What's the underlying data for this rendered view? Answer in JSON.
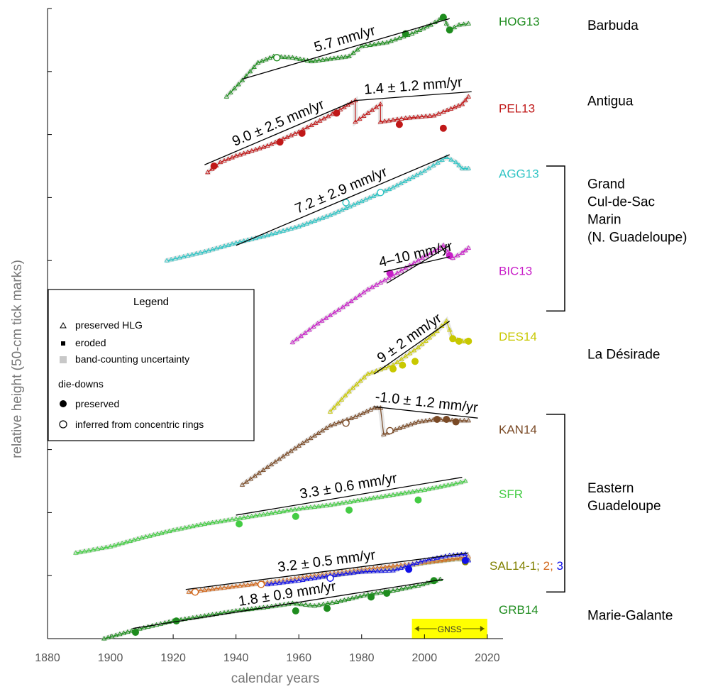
{
  "chart_data": {
    "type": "line",
    "title": "",
    "xlabel": "calendar years",
    "ylabel": "relative height (50-cm tick marks)",
    "xlim": [
      1880,
      2025
    ],
    "xticks": [
      1880,
      1900,
      1920,
      1940,
      1960,
      1980,
      2000,
      2020
    ],
    "ylim": [
      0,
      5
    ],
    "ytick_step_m": 0.5,
    "y_units": "m",
    "grid": false,
    "legend": {
      "title": "Legend",
      "placement": "left-middle",
      "items": [
        {
          "symbol": "triangle",
          "label": "preserved HLG"
        },
        {
          "symbol": "square",
          "label": "eroded"
        },
        {
          "symbol": "gray-band",
          "label": "band-counting uncertainty"
        }
      ],
      "subheading": "die-downs",
      "subitems": [
        {
          "symbol": "filled-circle",
          "label": "preserved"
        },
        {
          "symbol": "open-circle",
          "label": "inferred from concentric rings"
        }
      ]
    },
    "gnss": {
      "label": "GNSS",
      "x": [
        1996,
        2020
      ],
      "color": "#ffff00"
    },
    "series": [
      {
        "name": "HOG13",
        "color": "#1e8c1e",
        "points": [
          [
            1937,
            4.3
          ],
          [
            1942,
            4.43
          ],
          [
            1947,
            4.57
          ],
          [
            1952,
            4.62
          ],
          [
            1958,
            4.61
          ],
          [
            1964,
            4.58
          ],
          [
            1970,
            4.6
          ],
          [
            1976,
            4.62
          ],
          [
            1980,
            4.7
          ],
          [
            1988,
            4.73
          ],
          [
            1996,
            4.8
          ],
          [
            2002,
            4.87
          ],
          [
            2006,
            4.93
          ],
          [
            2008,
            4.83
          ],
          [
            2011,
            4.87
          ],
          [
            2014,
            4.88
          ]
        ],
        "dies_filled": [
          [
            1994,
            4.8
          ],
          [
            2006,
            4.93
          ],
          [
            2008,
            4.83
          ]
        ],
        "dies_open": [
          [
            1953,
            4.61
          ]
        ]
      },
      {
        "name": "PEL13",
        "color": "#c01818",
        "points": [
          [
            1931,
            3.7
          ],
          [
            1935,
            3.78
          ],
          [
            1940,
            3.83
          ],
          [
            1950,
            3.91
          ],
          [
            1960,
            4.02
          ],
          [
            1972,
            4.18
          ],
          [
            1978,
            4.27
          ],
          [
            1978,
            4.1
          ],
          [
            1986,
            4.24
          ],
          [
            1986,
            4.1
          ],
          [
            1994,
            4.13
          ],
          [
            2003,
            4.15
          ],
          [
            2006,
            4.18
          ],
          [
            2012,
            4.24
          ],
          [
            2014,
            4.3
          ]
        ],
        "dies_filled": [
          [
            1933,
            3.75
          ],
          [
            1954,
            3.94
          ],
          [
            1961,
            4.01
          ],
          [
            1972,
            4.17
          ],
          [
            1992,
            4.08
          ],
          [
            2006,
            4.05
          ]
        ],
        "dies_open": []
      },
      {
        "name": "AGG13",
        "color": "#2ec4c4",
        "points": [
          [
            1918,
            3.0
          ],
          [
            1930,
            3.07
          ],
          [
            1940,
            3.14
          ],
          [
            1950,
            3.2
          ],
          [
            1960,
            3.27
          ],
          [
            1970,
            3.36
          ],
          [
            1980,
            3.47
          ],
          [
            1990,
            3.58
          ],
          [
            2000,
            3.71
          ],
          [
            2007,
            3.82
          ],
          [
            2010,
            3.78
          ],
          [
            2012,
            3.73
          ],
          [
            2014,
            3.73
          ]
        ],
        "dies_filled": [],
        "dies_open": [
          [
            1975,
            3.46
          ],
          [
            1986,
            3.54
          ]
        ]
      },
      {
        "name": "BIC13",
        "color": "#c81ec8",
        "points": [
          [
            1958,
            2.35
          ],
          [
            1966,
            2.5
          ],
          [
            1974,
            2.63
          ],
          [
            1982,
            2.77
          ],
          [
            1990,
            2.88
          ],
          [
            1998,
            3.0
          ],
          [
            2006,
            3.12
          ],
          [
            2009,
            3.02
          ],
          [
            2012,
            3.06
          ],
          [
            2014,
            3.1
          ]
        ],
        "dies_filled": [
          [
            1989,
            2.9
          ],
          [
            2008,
            3.04
          ]
        ],
        "dies_open": []
      },
      {
        "name": "DES14",
        "color": "#c8c800",
        "points": [
          [
            1970,
            1.8
          ],
          [
            1976,
            1.96
          ],
          [
            1982,
            2.1
          ],
          [
            1990,
            2.17
          ],
          [
            1998,
            2.31
          ],
          [
            2004,
            2.44
          ],
          [
            2007,
            2.52
          ],
          [
            2009,
            2.38
          ],
          [
            2012,
            2.36
          ],
          [
            2014,
            2.36
          ]
        ],
        "dies_filled": [
          [
            1990,
            2.14
          ],
          [
            1993,
            2.17
          ],
          [
            1997,
            2.2
          ],
          [
            2009,
            2.38
          ],
          [
            2011,
            2.36
          ],
          [
            2014,
            2.36
          ]
        ],
        "dies_open": []
      },
      {
        "name": "KAN14",
        "color": "#7a4a26",
        "points": [
          [
            1942,
            1.22
          ],
          [
            1950,
            1.36
          ],
          [
            1960,
            1.53
          ],
          [
            1970,
            1.69
          ],
          [
            1978,
            1.76
          ],
          [
            1984,
            1.83
          ],
          [
            1986,
            1.83
          ],
          [
            1987,
            1.62
          ],
          [
            1992,
            1.67
          ],
          [
            1998,
            1.72
          ],
          [
            2004,
            1.74
          ],
          [
            2010,
            1.73
          ],
          [
            2014,
            1.73
          ]
        ],
        "dies_filled": [
          [
            2004,
            1.74
          ],
          [
            2007,
            1.74
          ],
          [
            2010,
            1.72
          ]
        ],
        "dies_open": [
          [
            1975,
            1.71
          ],
          [
            1989,
            1.65
          ]
        ]
      },
      {
        "name": "SFR",
        "color": "#44cc44",
        "points": [
          [
            1889,
            0.68
          ],
          [
            1900,
            0.73
          ],
          [
            1910,
            0.8
          ],
          [
            1920,
            0.86
          ],
          [
            1930,
            0.91
          ],
          [
            1940,
            0.95
          ],
          [
            1950,
            0.99
          ],
          [
            1960,
            1.03
          ],
          [
            1970,
            1.06
          ],
          [
            1980,
            1.1
          ],
          [
            1990,
            1.14
          ],
          [
            2000,
            1.18
          ],
          [
            2010,
            1.23
          ],
          [
            2013,
            1.25
          ]
        ],
        "dies_filled": [
          [
            1941,
            0.91
          ],
          [
            1959,
            0.97
          ],
          [
            1976,
            1.02
          ],
          [
            1998,
            1.1
          ]
        ],
        "dies_open": []
      },
      {
        "name": "SAL14-1",
        "color": "#808000",
        "points": [
          [
            1968,
            0.49
          ],
          [
            1978,
            0.53
          ],
          [
            1990,
            0.56
          ],
          [
            2000,
            0.6
          ],
          [
            2010,
            0.63
          ],
          [
            2014,
            0.63
          ]
        ],
        "dies_filled": [
          [
            2013,
            0.61
          ]
        ],
        "dies_open": []
      },
      {
        "name": "2",
        "color": "#d2691e",
        "points": [
          [
            1925,
            0.37
          ],
          [
            1935,
            0.4
          ],
          [
            1945,
            0.43
          ],
          [
            1955,
            0.46
          ],
          [
            1965,
            0.5
          ],
          [
            1975,
            0.53
          ],
          [
            1985,
            0.56
          ],
          [
            1995,
            0.59
          ],
          [
            2005,
            0.62
          ],
          [
            2014,
            0.65
          ]
        ],
        "dies_filled": [],
        "dies_open": [
          [
            1927,
            0.37
          ],
          [
            1948,
            0.43
          ]
        ]
      },
      {
        "name": "3",
        "color": "#1010e8",
        "points": [
          [
            1950,
            0.43
          ],
          [
            1960,
            0.46
          ],
          [
            1970,
            0.5
          ],
          [
            1980,
            0.53
          ],
          [
            1990,
            0.54
          ],
          [
            2000,
            0.62
          ],
          [
            2008,
            0.66
          ],
          [
            2013,
            0.67
          ],
          [
            2014,
            0.62
          ]
        ],
        "dies_filled": [
          [
            1995,
            0.55
          ],
          [
            2013,
            0.62
          ]
        ],
        "dies_open": [
          [
            1970,
            0.48
          ]
        ]
      },
      {
        "name": "GRB14",
        "color": "#1e8c1e",
        "points": [
          [
            1898,
            0.0
          ],
          [
            1908,
            0.07
          ],
          [
            1920,
            0.14
          ],
          [
            1930,
            0.18
          ],
          [
            1940,
            0.22
          ],
          [
            1950,
            0.25
          ],
          [
            1958,
            0.28
          ],
          [
            1965,
            0.26
          ],
          [
            1972,
            0.29
          ],
          [
            1982,
            0.35
          ],
          [
            1990,
            0.38
          ],
          [
            1998,
            0.42
          ],
          [
            2005,
            0.47
          ]
        ],
        "dies_filled": [
          [
            1908,
            0.05
          ],
          [
            1921,
            0.14
          ],
          [
            1959,
            0.22
          ],
          [
            1969,
            0.24
          ],
          [
            1983,
            0.33
          ],
          [
            1988,
            0.36
          ],
          [
            2003,
            0.46
          ]
        ],
        "dies_open": []
      }
    ],
    "trend_lines": [
      {
        "label": "5.7 mm/yr",
        "x": [
          1942,
          2008
        ],
        "y": [
          4.44,
          4.92
        ]
      },
      {
        "label": "9.0 ± 2.5 mm/yr",
        "x": [
          1930,
          1978
        ],
        "y": [
          3.76,
          4.27
        ]
      },
      {
        "label": "1.4 ± 1.2 mm/yr",
        "x": [
          1978,
          2015
        ],
        "y": [
          4.27,
          4.34
        ]
      },
      {
        "label": "7.2 ± 2.9 mm/yr",
        "x": [
          1940,
          2008
        ],
        "y": [
          3.12,
          3.84
        ]
      },
      {
        "label": "4–10 mm/yr",
        "x": [
          1987,
          2008
        ],
        "y": [
          2.91,
          3.03
        ]
      },
      {
        "label": "",
        "x": [
          1988,
          2008
        ],
        "y": [
          2.82,
          3.12
        ]
      },
      {
        "label": "9 ± 2 mm/yr",
        "x": [
          1984,
          2008
        ],
        "y": [
          2.1,
          2.52
        ]
      },
      {
        "label": "-1.0 ± 1.2 mm/yr",
        "x": [
          1984,
          2017
        ],
        "y": [
          1.84,
          1.75
        ]
      },
      {
        "label": "3.3 ± 0.6 mm/yr",
        "x": [
          1940,
          2012
        ],
        "y": [
          0.98,
          1.28
        ]
      },
      {
        "label": "3.2 ± 0.5 mm/yr",
        "x": [
          1924,
          2014
        ],
        "y": [
          0.39,
          0.68
        ]
      },
      {
        "label": "1.8 ± 0.9 mm/yr",
        "x": [
          1907,
          2006
        ],
        "y": [
          0.08,
          0.47
        ]
      }
    ],
    "station_labels": [
      {
        "text": "HOG13",
        "color": "#1e8c1e",
        "y": 4.9
      },
      {
        "text": "PEL13",
        "color": "#c01818",
        "y": 4.21
      },
      {
        "text": "AGG13",
        "color": "#2ec4c4",
        "y": 3.69
      },
      {
        "text": "BIC13",
        "color": "#c81ec8",
        "y": 2.92
      },
      {
        "text": "DES14",
        "color": "#c8c800",
        "y": 2.4
      },
      {
        "text": "KAN14",
        "color": "#7a4a26",
        "y": 1.66
      },
      {
        "text": "SFR",
        "color": "#44cc44",
        "y": 1.15
      },
      {
        "text": "GRB14",
        "color": "#1e8c1e",
        "y": 0.23
      }
    ],
    "sal_label": {
      "parts": [
        {
          "text": "SAL14-1; ",
          "color": "#808000"
        },
        {
          "text": "2; ",
          "color": "#d2691e"
        },
        {
          "text": "3",
          "color": "#1010e8"
        }
      ],
      "y": 0.58
    },
    "region_labels": [
      {
        "lines": [
          "Barbuda"
        ],
        "y": 4.87
      },
      {
        "lines": [
          "Antigua"
        ],
        "y": 4.27
      },
      {
        "lines": [
          "Grand",
          "Cul-de-Sac",
          "Marin",
          "(N. Guadeloupe)"
        ],
        "y": 3.4
      },
      {
        "lines": [
          "La Désirade"
        ],
        "y": 2.26
      },
      {
        "lines": [
          "Eastern",
          "Guadeloupe"
        ],
        "y": 1.13
      },
      {
        "lines": [
          "Marie-Galante"
        ],
        "y": 0.19
      }
    ],
    "brackets": [
      {
        "y": [
          2.6,
          3.75
        ]
      },
      {
        "y": [
          0.37,
          1.78
        ]
      }
    ]
  }
}
